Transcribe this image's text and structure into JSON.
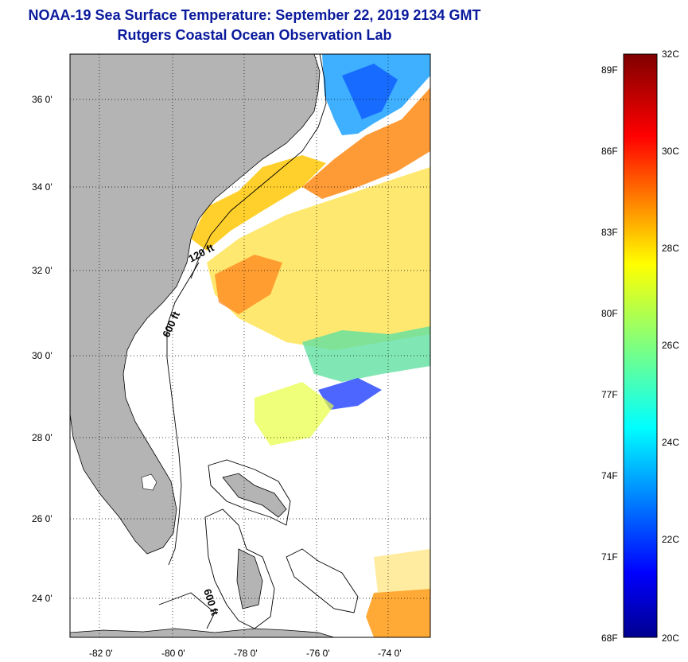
{
  "title": {
    "line1": "NOAA-19 Sea Surface Temperature:  September 22, 2019 2134 GMT",
    "line2": "Rutgers Coastal Ocean Observation Lab"
  },
  "map": {
    "lat_ticks": [
      "36 0'",
      "34 0'",
      "32 0'",
      "30 0'",
      "28 0'",
      "26 0'",
      "24 0'"
    ],
    "lon_ticks": [
      "-82 0'",
      "-80 0'",
      "-78 0'",
      "-76 0'",
      "-74 0'"
    ],
    "contour_labels": [
      "120 ft",
      "600 ft",
      "600 ft"
    ],
    "colors": {
      "land": "#b4b4b4",
      "ocean_no_data": "#ffffff",
      "frame": "#000000"
    }
  },
  "colorbar": {
    "fahrenheit_labels": [
      "89F",
      "86F",
      "83F",
      "80F",
      "77F",
      "74F",
      "71F",
      "68F"
    ],
    "celsius_labels": [
      "32C",
      "30C",
      "28C",
      "26C",
      "24C",
      "22C",
      "20C"
    ],
    "range_c": [
      20,
      32
    ],
    "colormap": "jet"
  }
}
